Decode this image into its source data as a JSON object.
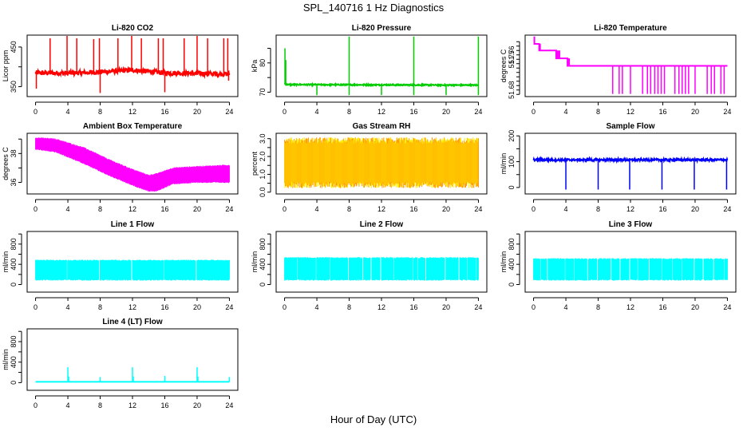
{
  "figure": {
    "title": "SPL_140716  1 Hz Diagnostics",
    "xlabel": "Hour of Day (UTC)"
  },
  "chart_data": [
    {
      "id": "li820-co2",
      "type": "line",
      "title": "Li-820 CO2",
      "ylabel": "Licor ppm",
      "color": "#ff0000",
      "xlim": [
        0,
        24
      ],
      "ylim": [
        325,
        480
      ],
      "xticks": [
        0,
        4,
        8,
        12,
        16,
        20,
        24
      ],
      "yticks": [
        350,
        400,
        450
      ],
      "ytick_labels": [
        "350",
        "",
        "450"
      ],
      "baseline": [
        [
          0,
          385
        ],
        [
          4,
          384
        ],
        [
          8,
          387
        ],
        [
          12,
          392
        ],
        [
          16,
          385
        ],
        [
          20,
          383
        ],
        [
          24,
          382
        ]
      ],
      "noise": 6,
      "spikes_up": [
        [
          1.8,
          472
        ],
        [
          3.9,
          478
        ],
        [
          5.1,
          472
        ],
        [
          7.2,
          470
        ],
        [
          7.9,
          472
        ],
        [
          10.2,
          472
        ],
        [
          11.9,
          478
        ],
        [
          13.1,
          472
        ],
        [
          15.2,
          472
        ],
        [
          15.8,
          472
        ],
        [
          18.4,
          472
        ],
        [
          20.0,
          478
        ],
        [
          21.3,
          472
        ],
        [
          23.3,
          472
        ],
        [
          23.8,
          472
        ]
      ],
      "spikes_down": [
        [
          0.1,
          345
        ],
        [
          8.0,
          334
        ],
        [
          16.0,
          336
        ],
        [
          23.9,
          365
        ]
      ]
    },
    {
      "id": "li820-pressure",
      "type": "line",
      "title": "Li-820 Pressure",
      "ylabel": "kPa",
      "color": "#00cc00",
      "xlim": [
        0,
        24
      ],
      "ylim": [
        68.5,
        89.5
      ],
      "xticks": [
        0,
        4,
        8,
        12,
        16,
        20,
        24
      ],
      "yticks": [
        70,
        75,
        80,
        85
      ],
      "ytick_labels": [
        "70",
        "",
        "80",
        ""
      ],
      "baseline": [
        [
          0,
          72.8
        ],
        [
          0.3,
          72.6
        ],
        [
          24,
          72.4
        ]
      ],
      "noise": 0.2,
      "spikes_up": [
        [
          0.05,
          85
        ],
        [
          0.15,
          81
        ],
        [
          8.0,
          89
        ],
        [
          16.0,
          89
        ],
        [
          24.0,
          89
        ]
      ],
      "spikes_down": [
        [
          4.0,
          69.0
        ],
        [
          8.0,
          69.0
        ],
        [
          12.0,
          69.0
        ],
        [
          16.0,
          69.0
        ],
        [
          20.0,
          69.0
        ],
        [
          24.0,
          69.0
        ]
      ]
    },
    {
      "id": "li820-temperature",
      "type": "step",
      "title": "Li-820 Temperature",
      "ylabel": "degrees C",
      "color": "#ff00ff",
      "xlim": [
        0,
        24
      ],
      "ylim": [
        51.665,
        51.805
      ],
      "xticks": [
        0,
        4,
        8,
        12,
        16,
        20,
        24
      ],
      "yticks": [
        51.67,
        51.68,
        51.69,
        51.7,
        51.71,
        51.72,
        51.73,
        51.74,
        51.75,
        51.76,
        51.77,
        51.78,
        51.79
      ],
      "ytick_labels": [
        "",
        "51.68",
        "",
        "",
        "",
        "",
        "",
        "",
        "51.75",
        "51.76",
        "",
        "",
        ""
      ],
      "steps": [
        [
          0,
          51.8
        ],
        [
          0.1,
          51.785
        ],
        [
          0.7,
          51.77
        ],
        [
          2.8,
          51.752
        ],
        [
          4.2,
          51.735
        ],
        [
          24,
          51.735
        ]
      ],
      "drops": [
        9.8,
        10.6,
        11.0,
        12.0,
        13.5,
        14.1,
        14.5,
        15.0,
        15.4,
        15.8,
        16.2,
        17.5,
        18.0,
        18.4,
        18.8,
        19.2,
        20.0,
        21.5,
        22.0,
        22.4,
        23.2,
        23.6
      ],
      "drop_value": 51.671
    },
    {
      "id": "ambient-box-temperature",
      "type": "band",
      "title": "Ambient Box Temperature",
      "ylabel": "degrees C",
      "color": "#ff00ff",
      "xlim": [
        0,
        24
      ],
      "ylim": [
        35.2,
        39.4
      ],
      "xticks": [
        0,
        4,
        8,
        12,
        16,
        20,
        24
      ],
      "yticks": [
        36,
        37,
        38,
        39
      ],
      "ytick_labels": [
        "36",
        "",
        "38",
        ""
      ],
      "upper": [
        [
          0,
          39.1
        ],
        [
          2.5,
          39.0
        ],
        [
          6,
          38.4
        ],
        [
          9,
          37.6
        ],
        [
          12,
          36.9
        ],
        [
          14,
          36.5
        ],
        [
          15,
          36.6
        ],
        [
          17,
          37.0
        ],
        [
          20,
          37.1
        ],
        [
          24,
          37.2
        ]
      ],
      "lower": [
        [
          0,
          38.3
        ],
        [
          2.5,
          38.1
        ],
        [
          6,
          37.3
        ],
        [
          9,
          36.5
        ],
        [
          12,
          35.8
        ],
        [
          14,
          35.4
        ],
        [
          15,
          35.4
        ],
        [
          17,
          35.9
        ],
        [
          20,
          36.0
        ],
        [
          24,
          36.0
        ]
      ]
    },
    {
      "id": "gas-stream-rh",
      "type": "band",
      "title": "Gas Stream RH",
      "ylabel": "percent",
      "color": "#ff9900",
      "color2": "#ffee00",
      "xlim": [
        0,
        24
      ],
      "ylim": [
        -0.1,
        3.3
      ],
      "xticks": [
        0,
        4,
        8,
        12,
        16,
        20,
        24
      ],
      "yticks": [
        0.0,
        0.5,
        1.0,
        1.5,
        2.0,
        2.5,
        3.0
      ],
      "ytick_labels": [
        "0.0",
        "",
        "1.0",
        "",
        "2.0",
        "",
        "3.0"
      ],
      "upper": [
        [
          0,
          2.9
        ],
        [
          24,
          2.9
        ]
      ],
      "lower": [
        [
          0,
          0.4
        ],
        [
          24,
          0.4
        ]
      ],
      "noise": 0.35
    },
    {
      "id": "sample-flow",
      "type": "line",
      "title": "Sample Flow",
      "ylabel": "ml/min",
      "color": "#0000ff",
      "xlim": [
        0,
        24
      ],
      "ylim": [
        -25,
        210
      ],
      "xticks": [
        0,
        4,
        8,
        12,
        16,
        20,
        24
      ],
      "yticks": [
        0,
        50,
        100,
        150,
        200
      ],
      "ytick_labels": [
        "0",
        "",
        "100",
        "",
        "200"
      ],
      "baseline": [
        [
          0,
          107
        ],
        [
          24,
          107
        ]
      ],
      "noise": 4,
      "spikes_down": [
        [
          4.0,
          -8
        ],
        [
          8.0,
          -8
        ],
        [
          11.9,
          -8
        ],
        [
          15.9,
          -8
        ],
        [
          19.9,
          -8
        ],
        [
          23.9,
          -8
        ]
      ]
    },
    {
      "id": "line1-flow",
      "type": "band",
      "title": "Line 1 Flow",
      "ylabel": "ml/min",
      "color": "#00ffff",
      "xlim": [
        0,
        24
      ],
      "ylim": [
        -150,
        1050
      ],
      "xticks": [
        0,
        4,
        8,
        12,
        16,
        20,
        24
      ],
      "yticks": [
        0,
        200,
        400,
        600,
        800,
        1000
      ],
      "ytick_labels": [
        "0",
        "",
        "400",
        "",
        "800",
        ""
      ],
      "upper": [
        [
          0,
          480
        ],
        [
          24,
          480
        ]
      ],
      "lower": [
        [
          0,
          90
        ],
        [
          24,
          90
        ]
      ],
      "gaps": [
        3.9,
        7.9,
        11.9,
        15.9,
        19.9
      ]
    },
    {
      "id": "line2-flow",
      "type": "band",
      "title": "Line 2 Flow",
      "ylabel": "ml/min",
      "color": "#00ffff",
      "xlim": [
        0,
        24
      ],
      "ylim": [
        -150,
        1050
      ],
      "xticks": [
        0,
        4,
        8,
        12,
        16,
        20,
        24
      ],
      "yticks": [
        0,
        200,
        400,
        600,
        800,
        1000
      ],
      "ytick_labels": [
        "0",
        "",
        "400",
        "",
        "800",
        ""
      ],
      "upper": [
        [
          0,
          530
        ],
        [
          24,
          530
        ]
      ],
      "lower": [
        [
          0,
          90
        ],
        [
          24,
          90
        ]
      ],
      "gaps": [
        1.6,
        3.9,
        5.6,
        7.9,
        9.7,
        10.7,
        11.9,
        13.5,
        15.9,
        16.5,
        17.5,
        19.9,
        21.6,
        22.6,
        23.7
      ]
    },
    {
      "id": "line3-flow",
      "type": "band",
      "title": "Line 3 Flow",
      "ylabel": "ml/min",
      "color": "#00ffff",
      "xlim": [
        0,
        24
      ],
      "ylim": [
        -150,
        1050
      ],
      "xticks": [
        0,
        4,
        8,
        12,
        16,
        20,
        24
      ],
      "yticks": [
        0,
        200,
        400,
        600,
        800,
        1000
      ],
      "ytick_labels": [
        "0",
        "",
        "400",
        "",
        "800",
        ""
      ],
      "upper": [
        [
          0,
          510
        ],
        [
          24,
          510
        ]
      ],
      "lower": [
        [
          0,
          90
        ],
        [
          24,
          90
        ]
      ],
      "gaps": [
        0.9,
        1.7,
        3.9,
        5.0,
        6.7,
        7.9,
        9.6,
        10.7,
        11.9,
        12.9,
        14.3,
        15.9,
        17.2,
        18.4,
        19.9,
        21.0,
        22.3,
        23.6
      ]
    },
    {
      "id": "line4-lt-flow",
      "type": "line",
      "title": "Line 4 (LT) Flow",
      "ylabel": "ml/min",
      "color": "#00ffff",
      "xlim": [
        0,
        24
      ],
      "ylim": [
        -150,
        1050
      ],
      "xticks": [
        0,
        4,
        8,
        12,
        16,
        20,
        24
      ],
      "yticks": [
        0,
        200,
        400,
        600,
        800,
        1000
      ],
      "ytick_labels": [
        "0",
        "",
        "400",
        "",
        "800",
        ""
      ],
      "baseline": [
        [
          0,
          15
        ],
        [
          24,
          15
        ]
      ],
      "noise": 0,
      "spikes_up": [
        [
          4.0,
          300
        ],
        [
          4.1,
          120
        ],
        [
          8.0,
          110
        ],
        [
          12.0,
          300
        ],
        [
          12.1,
          120
        ],
        [
          16.0,
          130
        ],
        [
          20.0,
          300
        ],
        [
          20.1,
          120
        ],
        [
          24.0,
          110
        ]
      ]
    }
  ]
}
